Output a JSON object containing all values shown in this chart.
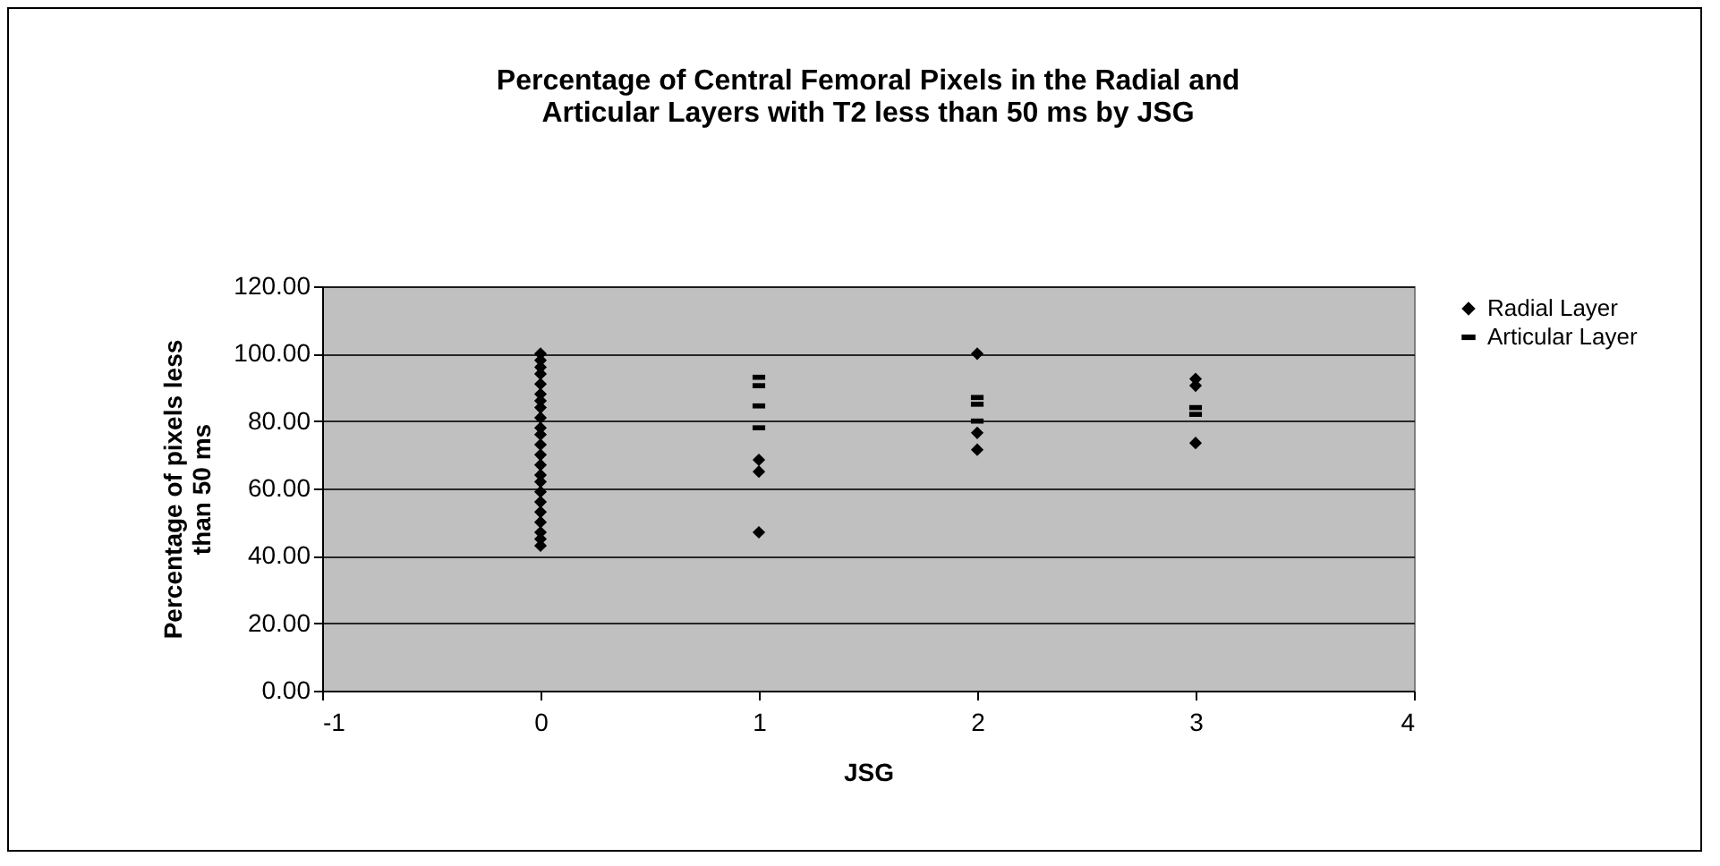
{
  "chart_data": {
    "type": "scatter",
    "title": "Percentage of Central Femoral Pixels in the Radial and Articular Layers with T2 less than 50 ms by JSG",
    "xlabel": "JSG",
    "ylabel": "Percentage of pixels less than 50 ms",
    "series": [
      {
        "name": "Radial Layer",
        "color": "#000000",
        "marker": "diamond",
        "x": [
          0,
          0,
          0,
          0,
          0,
          0,
          0,
          0,
          0,
          0,
          0,
          0,
          0,
          0,
          0,
          0,
          0,
          0,
          0,
          0,
          0,
          0,
          0,
          1,
          1,
          1,
          2,
          2,
          2,
          3,
          3,
          3
        ],
        "values": [
          100,
          98,
          96,
          94,
          91,
          88,
          86,
          84,
          81,
          78,
          76,
          73,
          70,
          67,
          64,
          62,
          59,
          56,
          53,
          50,
          47,
          45,
          43,
          68.5,
          65,
          47,
          100,
          76.5,
          71.5,
          92.5,
          90.5,
          73.5
        ]
      },
      {
        "name": "Articular Layer",
        "color": "#000000",
        "x": [
          1,
          1,
          1,
          1,
          2,
          2,
          2,
          3,
          3
        ],
        "values": [
          93,
          90.5,
          84.5,
          78,
          87,
          85,
          80,
          84,
          82
        ]
      }
    ],
    "xlim": [
      -1,
      4
    ],
    "xticks": [
      -1,
      0,
      1,
      2,
      3,
      4
    ],
    "ylim": [
      0,
      120
    ],
    "yticks": [
      {
        "value": 0,
        "label": "0.00"
      },
      {
        "value": 20,
        "label": "20.00"
      },
      {
        "value": 40,
        "label": "40.00"
      },
      {
        "value": 60,
        "label": "60.00"
      },
      {
        "value": 80,
        "label": "80.00"
      },
      {
        "value": 100,
        "label": "100.00"
      },
      {
        "value": 120,
        "label": "120.00"
      }
    ],
    "grid": "y",
    "legend": "right"
  }
}
